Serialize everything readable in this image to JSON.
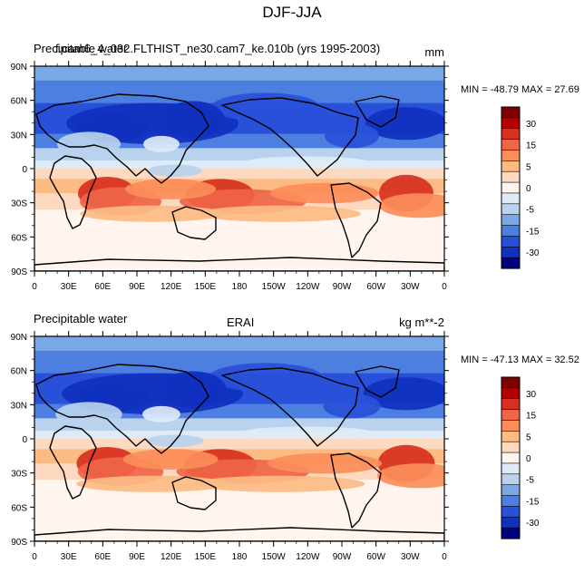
{
  "title": "DJF-JJA",
  "panels": [
    {
      "left_label": "Precipitable water",
      "center_label": "",
      "case_label": "f.cam6_4_032.FLTHIST_ne30.cam7_ke.010b (yrs 1995-2003)",
      "right_label": "mm",
      "min": "-48.79",
      "max": "27.69",
      "minmax_text": "MIN = -48.79 MAX =  27.69"
    },
    {
      "left_label": "Precipitable water",
      "center_label": "ERAI",
      "case_label": "",
      "right_label": "kg m**-2",
      "min": "-47.13",
      "max": "32.52",
      "minmax_text": "MIN = -47.13 MAX =  32.52"
    }
  ],
  "axes": {
    "lat_labels": [
      "90N",
      "60N",
      "30N",
      "0",
      "30S",
      "60S",
      "90S"
    ],
    "lon_labels": [
      "0",
      "30E",
      "60E",
      "90E",
      "120E",
      "150E",
      "180",
      "150W",
      "120W",
      "90W",
      "60W",
      "30W",
      "0"
    ]
  },
  "colorbar": {
    "labels": [
      "30",
      "15",
      "5",
      "0",
      "-5",
      "-15",
      "-30"
    ],
    "colors": [
      "#800000",
      "#b40000",
      "#d7301f",
      "#ef6548",
      "#fc8d59",
      "#fdbb84",
      "#fdd9c0",
      "#fff5ee",
      "#deebf7",
      "#b9d3ee",
      "#7aa7e6",
      "#4d7fe0",
      "#2850d8",
      "#1030c0",
      "#000080"
    ]
  },
  "map_colors": {
    "deep_red": "#d7301f",
    "red": "#ef6548",
    "salmon": "#fc8d59",
    "light_salmon": "#fdbb84",
    "peach": "#fdd9c0",
    "near_white": "#fff5ee",
    "pale_blue": "#deebf7",
    "light_blue": "#b9d3ee",
    "blue": "#7aa7e6",
    "mid_blue": "#4d7fe0",
    "strong_blue": "#2850d8",
    "deep_blue": "#1030c0"
  }
}
